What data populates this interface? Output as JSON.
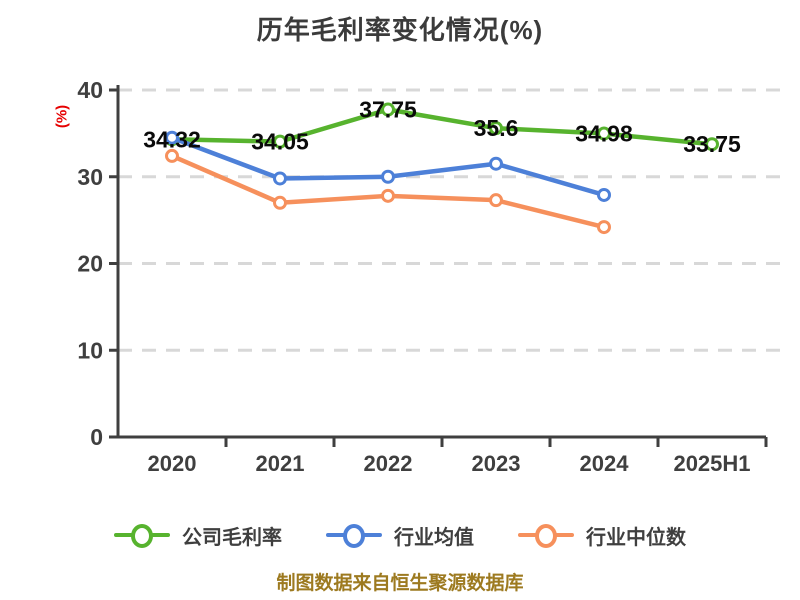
{
  "title": "历年毛利率变化情况(%)",
  "footer": "制图数据来自恒生聚源数据库",
  "colors": {
    "company": "#57b32e",
    "industry_avg": "#4d80d8",
    "industry_median": "#f6905c",
    "axis": "#3f3f3f",
    "grid": "#d8d8d8",
    "point_label": "#0a0a0a",
    "y_unit": "#e60000",
    "title": "#3b3b3b",
    "footer": "#9d7a20"
  },
  "chart_data": {
    "type": "line",
    "title": "历年毛利率变化情况(%)",
    "ylabel": "(%)",
    "xlabel": "",
    "ylim": [
      0,
      40
    ],
    "yticks": [
      0,
      10,
      20,
      30,
      40
    ],
    "grid": "dashed-horizontal",
    "legend_position": "bottom",
    "categories": [
      "2020",
      "2021",
      "2022",
      "2023",
      "2024",
      "2025H1"
    ],
    "series": [
      {
        "name": "公司毛利率",
        "color_key": "company",
        "values": [
          34.32,
          34.05,
          37.75,
          35.6,
          34.98,
          33.75
        ],
        "point_labels": [
          "34.32",
          "34.05",
          "37.75",
          "35.6",
          "34.98",
          "33.75"
        ]
      },
      {
        "name": "行业均值",
        "color_key": "industry_avg",
        "values": [
          34.5,
          29.8,
          30.0,
          31.5,
          27.9,
          null
        ],
        "point_labels": []
      },
      {
        "name": "行业中位数",
        "color_key": "industry_median",
        "values": [
          32.4,
          27.0,
          27.8,
          27.3,
          24.2,
          null
        ],
        "point_labels": []
      }
    ]
  }
}
